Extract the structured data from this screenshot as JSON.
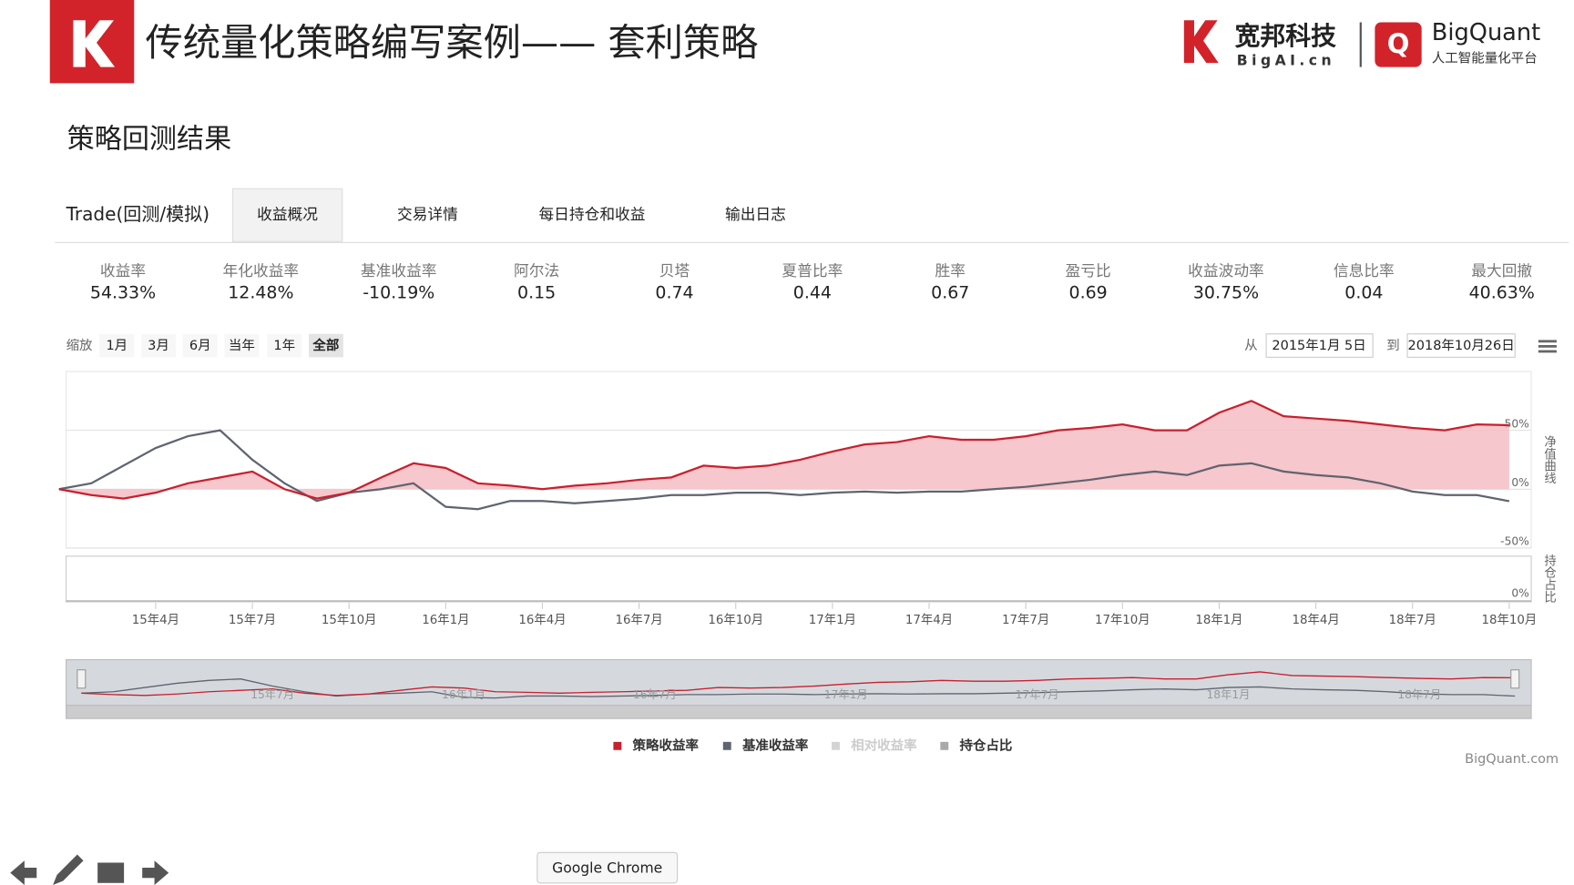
{
  "header": {
    "title": "传统量化策略编写案例—— 套利策略",
    "brand_cn": "宽邦科技",
    "brand_url": "BigAI.cn",
    "brand_en": "BigQuant",
    "brand_slogan": "人工智能量化平台"
  },
  "section_title": "策略回测结果",
  "tabs": [
    "Trade(回测/模拟)",
    "收益概况",
    "交易详情",
    "每日持仓和收益",
    "输出日志"
  ],
  "metrics": [
    {
      "label": "收益率",
      "value": "54.33%"
    },
    {
      "label": "年化收益率",
      "value": "12.48%"
    },
    {
      "label": "基准收益率",
      "value": "-10.19%"
    },
    {
      "label": "阿尔法",
      "value": "0.15"
    },
    {
      "label": "贝塔",
      "value": "0.74"
    },
    {
      "label": "夏普比率",
      "value": "0.44"
    },
    {
      "label": "胜率",
      "value": "0.67"
    },
    {
      "label": "盈亏比",
      "value": "0.69"
    },
    {
      "label": "收益波动率",
      "value": "30.75%"
    },
    {
      "label": "信息比率",
      "value": "0.04"
    },
    {
      "label": "最大回撤",
      "value": "40.63%"
    }
  ],
  "zoom": {
    "label": "缩放",
    "buttons": [
      "1月",
      "3月",
      "6月",
      "当年",
      "1年",
      "全部"
    ]
  },
  "date_range": {
    "from_label": "从",
    "from": "2015年1月 5日",
    "to_label": "到",
    "to": "2018年10月26日"
  },
  "chart_data": {
    "type": "line",
    "x": [
      "15年1月",
      "15年2月",
      "15年3月",
      "15年4月",
      "15年5月",
      "15年6月",
      "15年7月",
      "15年8月",
      "15年9月",
      "15年10月",
      "15年11月",
      "15年12月",
      "16年1月",
      "16年2月",
      "16年3月",
      "16年4月",
      "16年5月",
      "16年6月",
      "16年7月",
      "16年8月",
      "16年9月",
      "16年10月",
      "16年11月",
      "16年12月",
      "17年1月",
      "17年2月",
      "17年3月",
      "17年4月",
      "17年5月",
      "17年6月",
      "17年7月",
      "17年8月",
      "17年9月",
      "17年10月",
      "17年11月",
      "17年12月",
      "18年1月",
      "18年2月",
      "18年3月",
      "18年4月",
      "18年5月",
      "18年6月",
      "18年7月",
      "18年8月",
      "18年9月",
      "18年10月"
    ],
    "series": [
      {
        "name": "策略收益率",
        "color": "#c8202e",
        "values": [
          0,
          -5,
          -8,
          -3,
          5,
          10,
          15,
          0,
          -8,
          -3,
          10,
          22,
          18,
          5,
          3,
          0,
          3,
          5,
          8,
          10,
          20,
          18,
          20,
          25,
          32,
          38,
          40,
          45,
          42,
          42,
          45,
          50,
          52,
          55,
          50,
          50,
          65,
          75,
          62,
          60,
          58,
          55,
          52,
          50,
          55,
          54.33
        ]
      },
      {
        "name": "基准收益率",
        "color": "#5f6470",
        "values": [
          0,
          5,
          20,
          35,
          45,
          50,
          25,
          5,
          -10,
          -3,
          0,
          5,
          -15,
          -17,
          -10,
          -10,
          -12,
          -10,
          -8,
          -5,
          -5,
          -3,
          -3,
          -5,
          -3,
          -2,
          -3,
          -2,
          -2,
          0,
          2,
          5,
          8,
          12,
          15,
          12,
          20,
          22,
          15,
          12,
          10,
          5,
          -2,
          -5,
          -5,
          -10.19
        ]
      }
    ],
    "other_series": [
      {
        "name": "相对收益率",
        "color": "#d4d4d4"
      },
      {
        "name": "持仓占比",
        "color": "#a9a9a9"
      }
    ],
    "area_color": "#f4b9bf",
    "ylim": [
      -50,
      100
    ],
    "yticks": [
      {
        "value": -50,
        "label": "-50%"
      },
      {
        "value": 0,
        "label": "0%"
      },
      {
        "value": 50,
        "label": "50%"
      }
    ],
    "y_axis_title": "净值曲线",
    "position_panel": {
      "title": "持仓占比",
      "tick": {
        "value": 0,
        "label": "0%"
      }
    },
    "xticks": [
      "15年4月",
      "15年7月",
      "15年10月",
      "16年1月",
      "16年4月",
      "16年7月",
      "16年10月",
      "17年1月",
      "17年4月",
      "17年7月",
      "17年10月",
      "18年1月",
      "18年4月",
      "18年7月",
      "18年10月"
    ],
    "navigator_ticks": [
      "15年7月",
      "16年1月",
      "16年7月",
      "17年1月",
      "17年7月",
      "18年1月",
      "18年7月"
    ]
  },
  "credit": "BigQuant.com",
  "tooltip": "Google Chrome"
}
